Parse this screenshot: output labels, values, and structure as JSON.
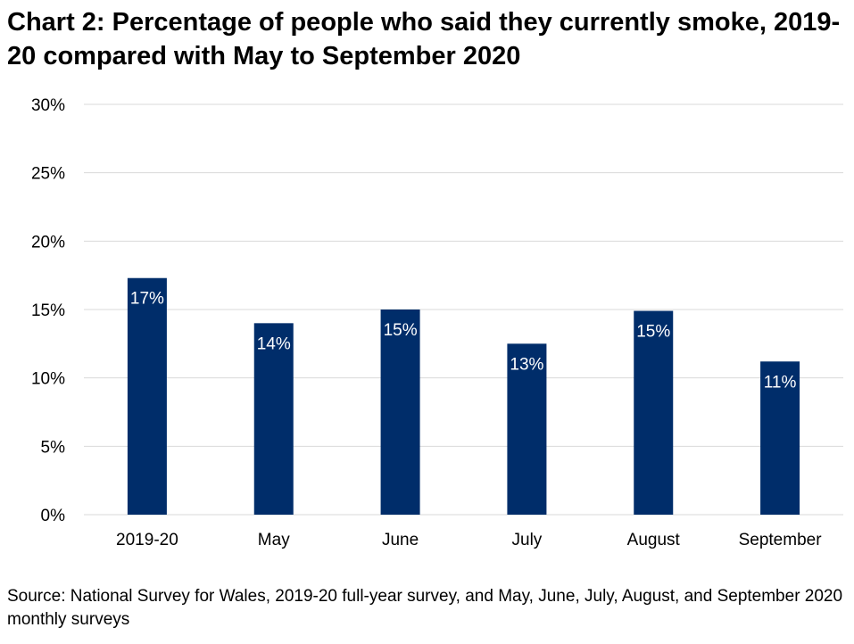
{
  "chart_data": {
    "type": "bar",
    "title": "Chart 2: Percentage of people who said they currently smoke, 2019-20 compared with May to September 2020",
    "xlabel": "",
    "ylabel": "",
    "categories": [
      "2019-20",
      "May",
      "June",
      "July",
      "August",
      "September"
    ],
    "values": [
      17.3,
      14.0,
      15.0,
      12.5,
      14.9,
      11.2
    ],
    "data_labels": [
      "17%",
      "14%",
      "15%",
      "13%",
      "15%",
      "11%"
    ],
    "ylim": [
      0,
      30
    ],
    "yticks": [
      0,
      5,
      10,
      15,
      20,
      25,
      30
    ],
    "ytick_labels": [
      "0%",
      "5%",
      "10%",
      "15%",
      "20%",
      "25%",
      "30%"
    ],
    "grid": true,
    "legend": "none",
    "bar_color": "#002D6A",
    "source": "Source: National Survey for Wales, 2019-20 full-year survey, and May, June, July, August, and September 2020 monthly surveys"
  }
}
